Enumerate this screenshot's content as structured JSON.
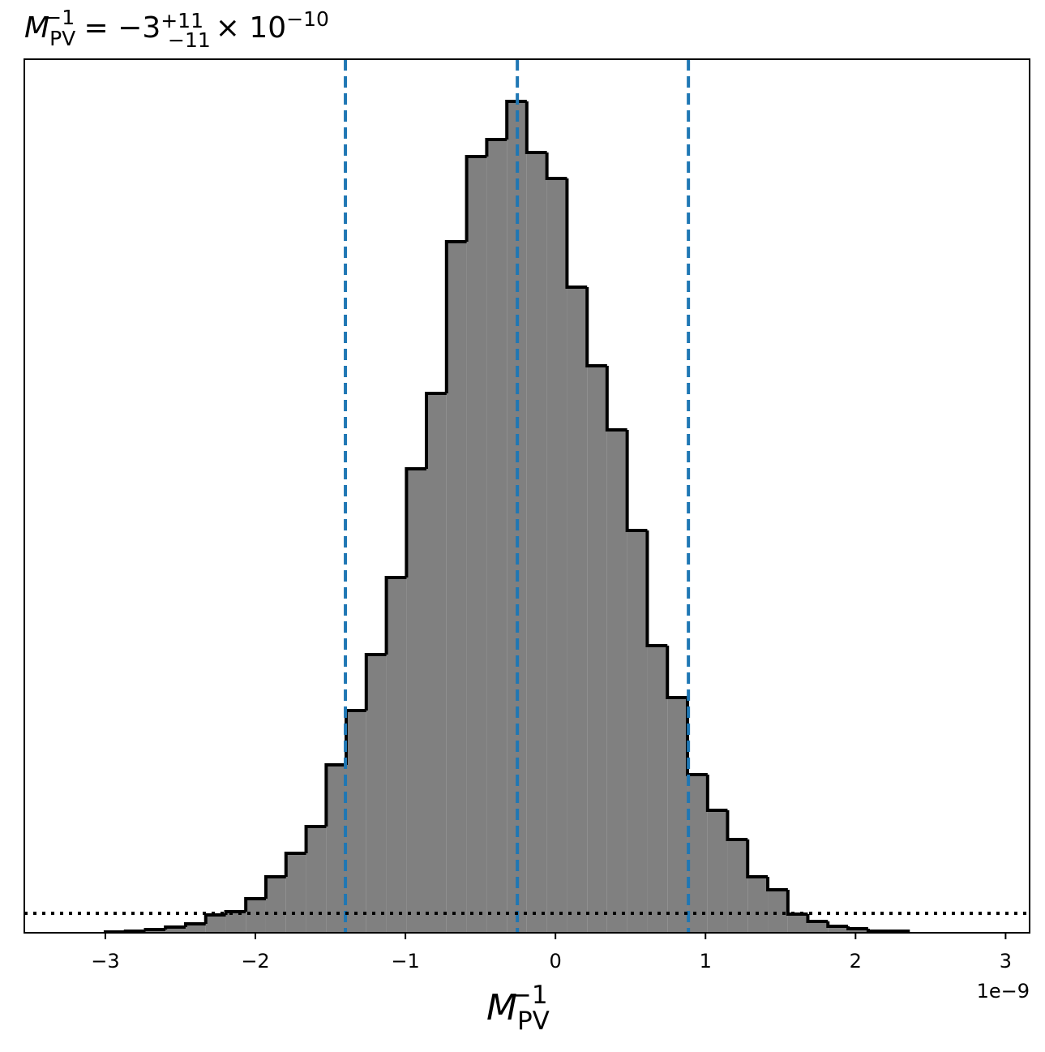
{
  "chart_data": {
    "type": "histogram",
    "title": {
      "base": "M",
      "sub": "PV",
      "sup": "−1",
      "rest": " = −3",
      "err_plus": "+11",
      "err_minus": "−11",
      "tail": "× 10",
      "exp": "−10"
    },
    "xlabel": {
      "base": "M",
      "sub": "PV",
      "sup": "−1"
    },
    "x_offset_label": "1e−9",
    "bins": [
      -3.0,
      -2.866,
      -2.732,
      -2.599,
      -2.465,
      -2.331,
      -2.197,
      -2.064,
      -1.93,
      -1.796,
      -1.662,
      -1.528,
      -1.395,
      -1.261,
      -1.127,
      -0.993,
      -0.86,
      -0.726,
      -0.592,
      -0.458,
      -0.324,
      -0.191,
      -0.057,
      0.077,
      0.211,
      0.344,
      0.478,
      0.612,
      0.746,
      0.88,
      1.014,
      1.147,
      1.281,
      1.415,
      1.549,
      1.682,
      1.816,
      1.95,
      2.084,
      2.217,
      2.351
    ],
    "values": [
      1,
      2,
      4,
      7,
      11,
      22,
      26,
      42,
      69,
      98,
      131,
      207,
      274,
      343,
      438,
      572,
      665,
      852,
      957,
      978,
      1025,
      962,
      930,
      796,
      699,
      620,
      496,
      354,
      290,
      195,
      151,
      115,
      69,
      53,
      23,
      14,
      8,
      5,
      2,
      2
    ],
    "color": "#808080",
    "edge_color": "#000000",
    "quantiles": [
      -1.4,
      -0.254,
      0.886
    ],
    "quantile_color": "#1f77b4",
    "hline": 24,
    "xlim": [
      -3.54,
      3.16
    ],
    "xticks": [
      {
        "value": -3,
        "label": "−3"
      },
      {
        "value": -2,
        "label": "−2"
      },
      {
        "value": -1,
        "label": "−1"
      },
      0,
      1,
      2,
      3
    ],
    "ylim": [
      0,
      1077
    ]
  }
}
